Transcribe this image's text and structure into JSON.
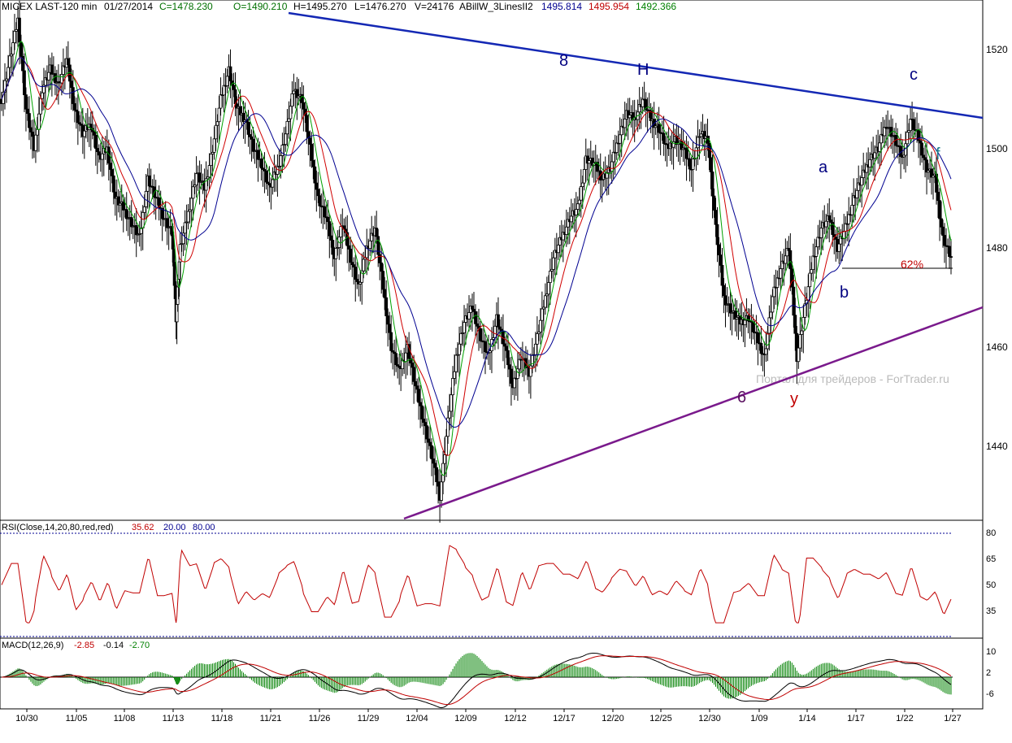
{
  "header": {
    "instrument": "MICEX LAST-120 min",
    "date": "01/27/2014",
    "close": "C=1478.230",
    "open": "O=1490.210",
    "high": "H=1495.270",
    "low": "L=1476.270",
    "volume": "V=24176",
    "indicator": "ABillW_3LinesII2",
    "ind1": "1495.814",
    "ind2": "1495.954",
    "ind3": "1492.366"
  },
  "watermark": "Портал для трейдеров - ForTrader.ru",
  "colors": {
    "up": "#000000",
    "down": "#000000",
    "ma_fast": "#00a000",
    "ma_mid": "#d00000",
    "ma_slow": "#000090",
    "trend_upper": "#1428b4",
    "trend_lower": "#7a1a8c",
    "wave_blue": "#000080",
    "wave_purple": "#5a1060",
    "wave_red": "#c00000",
    "rsi_line": "#c00000",
    "macd_line": "#000000",
    "signal_line": "#c00000",
    "hist": "#008000"
  },
  "annotations": {
    "wave_8": "8",
    "wave_H": "H",
    "wave_c": "c",
    "wave_f": "f",
    "wave_a": "a",
    "wave_b": "b",
    "wave_6": "6",
    "wave_y": "y",
    "fib": "62%"
  },
  "rsi": {
    "label": "RSI(Close,14,20,80,red,red)",
    "value": "35.62",
    "lower": "20.00",
    "upper": "80.00",
    "ticks": [
      "80",
      "65",
      "50",
      "35"
    ]
  },
  "macd": {
    "label": "MACD(12,26,9)",
    "v1": "-2.85",
    "v2": "-0.14",
    "v3": "-2.70",
    "ticks": [
      "10",
      "2",
      "-6"
    ]
  },
  "chart_data": {
    "type": "line",
    "price_ticks": [
      "1520",
      "1500",
      "1480",
      "1460",
      "1440"
    ],
    "ylim": [
      1426,
      1530
    ],
    "x_labels": [
      "10/30",
      "11/05",
      "11/08",
      "11/13",
      "11/18",
      "11/21",
      "11/26",
      "11/29",
      "12/04",
      "12/09",
      "12/12",
      "12/17",
      "12/20",
      "12/25",
      "12/30",
      "1/09",
      "1/14",
      "1/17",
      "1/22",
      "1/27"
    ],
    "close_path": [
      [
        0,
        1510
      ],
      [
        10,
        1518
      ],
      [
        20,
        1526
      ],
      [
        30,
        1508
      ],
      [
        40,
        1500
      ],
      [
        50,
        1512
      ],
      [
        60,
        1516
      ],
      [
        70,
        1513
      ],
      [
        80,
        1518
      ],
      [
        90,
        1508
      ],
      [
        100,
        1503
      ],
      [
        110,
        1505
      ],
      [
        120,
        1498
      ],
      [
        130,
        1500
      ],
      [
        140,
        1490
      ],
      [
        150,
        1488
      ],
      [
        160,
        1485
      ],
      [
        170,
        1482
      ],
      [
        180,
        1494
      ],
      [
        190,
        1490
      ],
      [
        200,
        1486
      ],
      [
        210,
        1483
      ],
      [
        215,
        1466
      ],
      [
        220,
        1480
      ],
      [
        230,
        1487
      ],
      [
        240,
        1495
      ],
      [
        250,
        1492
      ],
      [
        260,
        1500
      ],
      [
        270,
        1510
      ],
      [
        280,
        1516
      ],
      [
        290,
        1508
      ],
      [
        300,
        1506
      ],
      [
        310,
        1500
      ],
      [
        320,
        1497
      ],
      [
        330,
        1492
      ],
      [
        340,
        1496
      ],
      [
        350,
        1503
      ],
      [
        360,
        1512
      ],
      [
        370,
        1510
      ],
      [
        380,
        1500
      ],
      [
        390,
        1490
      ],
      [
        400,
        1486
      ],
      [
        410,
        1478
      ],
      [
        420,
        1485
      ],
      [
        430,
        1478
      ],
      [
        440,
        1472
      ],
      [
        450,
        1480
      ],
      [
        460,
        1484
      ],
      [
        470,
        1472
      ],
      [
        480,
        1460
      ],
      [
        490,
        1455
      ],
      [
        500,
        1460
      ],
      [
        510,
        1452
      ],
      [
        520,
        1445
      ],
      [
        530,
        1438
      ],
      [
        540,
        1430
      ],
      [
        550,
        1445
      ],
      [
        560,
        1458
      ],
      [
        570,
        1465
      ],
      [
        580,
        1468
      ],
      [
        590,
        1462
      ],
      [
        600,
        1458
      ],
      [
        610,
        1466
      ],
      [
        620,
        1460
      ],
      [
        630,
        1452
      ],
      [
        640,
        1458
      ],
      [
        650,
        1455
      ],
      [
        660,
        1462
      ],
      [
        670,
        1470
      ],
      [
        680,
        1478
      ],
      [
        690,
        1482
      ],
      [
        700,
        1486
      ],
      [
        710,
        1488
      ],
      [
        720,
        1498
      ],
      [
        730,
        1497
      ],
      [
        740,
        1494
      ],
      [
        750,
        1496
      ],
      [
        760,
        1502
      ],
      [
        770,
        1507
      ],
      [
        780,
        1506
      ],
      [
        790,
        1510
      ],
      [
        800,
        1506
      ],
      [
        810,
        1504
      ],
      [
        820,
        1500
      ],
      [
        830,
        1502
      ],
      [
        840,
        1500
      ],
      [
        850,
        1496
      ],
      [
        860,
        1503
      ],
      [
        870,
        1502
      ],
      [
        880,
        1484
      ],
      [
        890,
        1470
      ],
      [
        900,
        1467
      ],
      [
        910,
        1465
      ],
      [
        920,
        1466
      ],
      [
        930,
        1462
      ],
      [
        940,
        1458
      ],
      [
        950,
        1470
      ],
      [
        960,
        1476
      ],
      [
        970,
        1480
      ],
      [
        980,
        1458
      ],
      [
        990,
        1468
      ],
      [
        1000,
        1478
      ],
      [
        1010,
        1484
      ],
      [
        1020,
        1486
      ],
      [
        1030,
        1480
      ],
      [
        1040,
        1484
      ],
      [
        1050,
        1490
      ],
      [
        1060,
        1494
      ],
      [
        1070,
        1498
      ],
      [
        1080,
        1500
      ],
      [
        1090,
        1505
      ],
      [
        1100,
        1502
      ],
      [
        1110,
        1498
      ],
      [
        1120,
        1506
      ],
      [
        1130,
        1502
      ],
      [
        1140,
        1496
      ],
      [
        1150,
        1494
      ],
      [
        1160,
        1482
      ],
      [
        1170,
        1478
      ]
    ]
  }
}
